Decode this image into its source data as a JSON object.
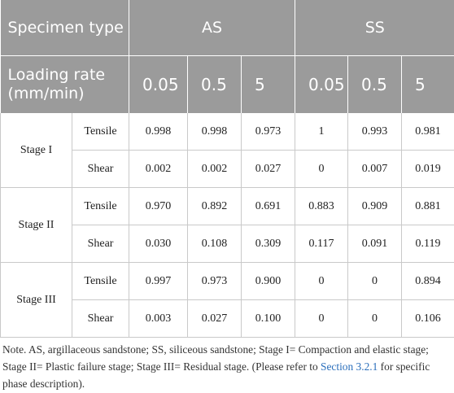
{
  "header": {
    "specimen_label": "Specimen type",
    "loading_label": "Loading rate (mm/min)",
    "groups": [
      "AS",
      "SS"
    ],
    "rates": [
      "0.05",
      "0.5",
      "5",
      "0.05",
      "0.5",
      "5"
    ]
  },
  "stages": [
    {
      "label": "Stage I",
      "rows": [
        {
          "type": "Tensile",
          "values": [
            "0.998",
            "0.998",
            "0.973",
            "1",
            "0.993",
            "0.981"
          ]
        },
        {
          "type": "Shear",
          "values": [
            "0.002",
            "0.002",
            "0.027",
            "0",
            "0.007",
            "0.019"
          ]
        }
      ]
    },
    {
      "label": "Stage II",
      "rows": [
        {
          "type": "Tensile",
          "values": [
            "0.970",
            "0.892",
            "0.691",
            "0.883",
            "0.909",
            "0.881"
          ]
        },
        {
          "type": "Shear",
          "values": [
            "0.030",
            "0.108",
            "0.309",
            "0.117",
            "0.091",
            "0.119"
          ]
        }
      ]
    },
    {
      "label": "Stage III",
      "rows": [
        {
          "type": "Tensile",
          "values": [
            "0.997",
            "0.973",
            "0.900",
            "0",
            "0",
            "0.894"
          ]
        },
        {
          "type": "Shear",
          "values": [
            "0.003",
            "0.027",
            "0.100",
            "0",
            "0",
            "0.106"
          ]
        }
      ]
    }
  ],
  "note": {
    "text_before": "Note. AS, argillaceous sandstone; SS, siliceous sandstone; Stage I= Compaction and elastic stage; Stage II= Plastic failure stage; Stage III= Residual stage. (Please refer to ",
    "link_text": "Section 3.2.1",
    "text_after": " for specific phase description)."
  },
  "colors": {
    "header_bg": "#9b9b9b",
    "header_text": "#ffffff",
    "border": "#c9c9c9",
    "link": "#2a6ebb"
  }
}
